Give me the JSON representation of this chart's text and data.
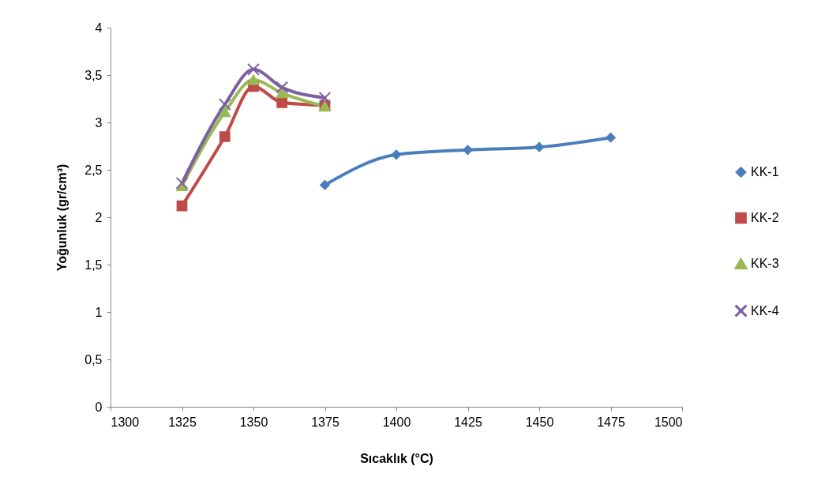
{
  "chart_data": {
    "type": "line",
    "xlabel": "Sıcaklık  (°C)",
    "ylabel": "Yoğunluk  (gr/cm³)",
    "xlim": [
      1300,
      1500
    ],
    "xticks": [
      1300,
      1325,
      1350,
      1375,
      1400,
      1425,
      1450,
      1475,
      1500
    ],
    "ylim": [
      0,
      4
    ],
    "yticks": [
      0,
      {
        "value": 0.5,
        "label": "0,5"
      },
      1,
      {
        "value": 1.5,
        "label": "1,5"
      },
      2,
      {
        "value": 2.5,
        "label": "2,5"
      },
      3,
      {
        "value": 3.5,
        "label": "3,5"
      },
      4
    ],
    "grid": false,
    "legend": "right",
    "line_style": "solid",
    "series": [
      {
        "name": "KK-1",
        "color": "#4a7ebb",
        "marker": "diamond",
        "x": [
          1375,
          1400,
          1425,
          1450,
          1475
        ],
        "values": [
          2.34,
          2.66,
          2.71,
          2.74,
          2.84
        ]
      },
      {
        "name": "KK-2",
        "color": "#be4b48",
        "marker": "square",
        "x": [
          1325,
          1340,
          1350,
          1360,
          1375
        ],
        "values": [
          2.12,
          2.85,
          3.38,
          3.21,
          3.18
        ]
      },
      {
        "name": "KK-3",
        "color": "#98b954",
        "marker": "triangle",
        "x": [
          1325,
          1340,
          1350,
          1360,
          1375
        ],
        "values": [
          2.33,
          3.11,
          3.45,
          3.31,
          3.17
        ]
      },
      {
        "name": "KK-4",
        "color": "#7d60a0",
        "marker": "cross",
        "x": [
          1325,
          1340,
          1350,
          1360,
          1375
        ],
        "values": [
          2.36,
          3.19,
          3.56,
          3.37,
          3.26
        ]
      }
    ]
  }
}
